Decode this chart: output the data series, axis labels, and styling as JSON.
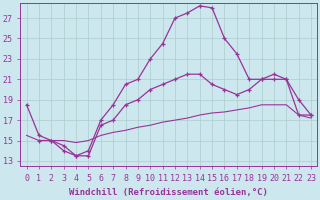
{
  "xlabel": "Windchill (Refroidissement éolien,°C)",
  "x_ticks": [
    0,
    1,
    2,
    3,
    4,
    5,
    6,
    7,
    8,
    9,
    10,
    11,
    12,
    13,
    14,
    15,
    16,
    17,
    18,
    19,
    20,
    21,
    22,
    23
  ],
  "y_ticks": [
    13,
    15,
    17,
    19,
    21,
    23,
    25,
    27
  ],
  "ylim": [
    12.5,
    28.5
  ],
  "xlim": [
    -0.5,
    23.5
  ],
  "line1_x": [
    0,
    1,
    2,
    3,
    4,
    5,
    6,
    7,
    8,
    9,
    10,
    11,
    12,
    13,
    14,
    15,
    16,
    17,
    18,
    19,
    20,
    21,
    22,
    23
  ],
  "line1_y": [
    18.5,
    15.5,
    15.0,
    14.5,
    13.5,
    14.0,
    17.0,
    18.5,
    20.5,
    21.0,
    23.0,
    24.5,
    27.0,
    27.5,
    28.2,
    28.0,
    25.0,
    23.5,
    21.0,
    21.0,
    21.5,
    21.0,
    19.0,
    17.5
  ],
  "line2_x": [
    1,
    2,
    3,
    4,
    5,
    6,
    7,
    8,
    9,
    10,
    11,
    12,
    13,
    14,
    15,
    16,
    17,
    18,
    19,
    20,
    21,
    22,
    23
  ],
  "line2_y": [
    15.0,
    15.0,
    14.0,
    13.5,
    13.5,
    16.5,
    17.0,
    18.5,
    19.0,
    20.0,
    20.5,
    21.0,
    21.5,
    21.5,
    20.5,
    20.0,
    19.5,
    20.0,
    21.0,
    21.0,
    21.0,
    17.5,
    17.5
  ],
  "line3_x": [
    0,
    1,
    2,
    3,
    4,
    5,
    6,
    7,
    8,
    9,
    10,
    11,
    12,
    13,
    14,
    15,
    16,
    17,
    18,
    19,
    20,
    21,
    22,
    23
  ],
  "line3_y": [
    15.5,
    15.0,
    15.0,
    15.0,
    14.8,
    15.0,
    15.5,
    15.8,
    16.0,
    16.3,
    16.5,
    16.8,
    17.0,
    17.2,
    17.5,
    17.7,
    17.8,
    18.0,
    18.2,
    18.5,
    18.5,
    18.5,
    17.5,
    17.2
  ],
  "line_color": "#993399",
  "bg_color": "#cce8ee",
  "grid_color": "#aacccc",
  "tick_fontsize": 6,
  "label_fontsize": 6.5
}
